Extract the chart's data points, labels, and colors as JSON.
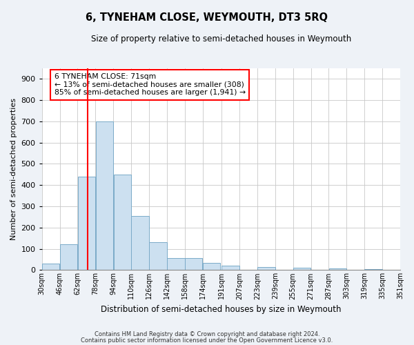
{
  "title": "6, TYNEHAM CLOSE, WEYMOUTH, DT3 5RQ",
  "subtitle": "Size of property relative to semi-detached houses in Weymouth",
  "xlabel": "Distribution of semi-detached houses by size in Weymouth",
  "ylabel": "Number of semi-detached properties",
  "bar_color": "#cce0f0",
  "bar_edge_color": "#7aaac8",
  "property_line_x": 71,
  "property_line_color": "red",
  "annotation_title": "6 TYNEHAM CLOSE: 71sqm",
  "annotation_line1": "← 13% of semi-detached houses are smaller (308)",
  "annotation_line2": "85% of semi-detached houses are larger (1,941) →",
  "annotation_box_color": "white",
  "annotation_box_edge_color": "red",
  "bin_edges": [
    30,
    46,
    62,
    78,
    94,
    110,
    126,
    142,
    158,
    174,
    191,
    207,
    223,
    239,
    255,
    271,
    287,
    303,
    319,
    335,
    351
  ],
  "bin_labels": [
    "30sqm",
    "46sqm",
    "62sqm",
    "78sqm",
    "94sqm",
    "110sqm",
    "126sqm",
    "142sqm",
    "158sqm",
    "174sqm",
    "191sqm",
    "207sqm",
    "223sqm",
    "239sqm",
    "255sqm",
    "271sqm",
    "287sqm",
    "303sqm",
    "319sqm",
    "335sqm",
    "351sqm"
  ],
  "bar_heights": [
    30,
    120,
    440,
    700,
    450,
    255,
    130,
    55,
    55,
    35,
    20,
    0,
    15,
    0,
    10,
    0,
    8,
    0,
    5,
    0
  ],
  "ylim": [
    0,
    950
  ],
  "yticks": [
    0,
    100,
    200,
    300,
    400,
    500,
    600,
    700,
    800,
    900
  ],
  "footnote1": "Contains HM Land Registry data © Crown copyright and database right 2024.",
  "footnote2": "Contains public sector information licensed under the Open Government Licence v3.0.",
  "background_color": "#eef2f7",
  "plot_bg_color": "#ffffff",
  "grid_color": "#c8c8c8"
}
